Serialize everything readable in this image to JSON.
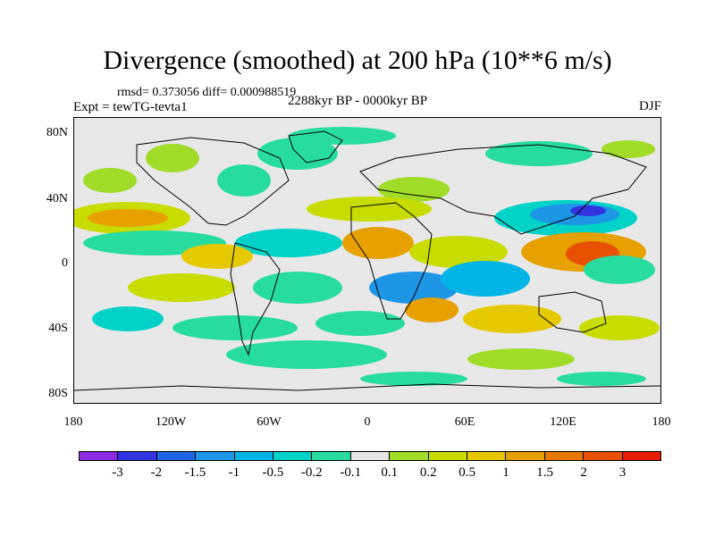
{
  "title": "Divergence (smoothed) at 200 hPa (10**6 m/s)",
  "stats": "rmsd= 0.373056 diff= 0.000988519",
  "experiment": "Expt = tewTG-tevta1",
  "period": "2288kyr BP - 0000kyr BP",
  "season": "DJF",
  "lat_labels": [
    "80N",
    "40N",
    "0",
    "40S",
    "80S"
  ],
  "lon_labels": [
    "180",
    "120W",
    "60W",
    "0",
    "60E",
    "120E",
    "180"
  ],
  "colorbar": {
    "colors": [
      "#8a2be2",
      "#3232e0",
      "#1e64e6",
      "#1e96e6",
      "#00b4e6",
      "#00d2c8",
      "#28dca0",
      "#e6e6e6",
      "#a0dc28",
      "#c8dc00",
      "#e6c800",
      "#e6a000",
      "#e67800",
      "#e65000",
      "#e61e00"
    ],
    "labels": [
      "-3",
      "-2",
      "-1.5",
      "-1",
      "-0.5",
      "-0.2",
      "-0.1",
      "0.1",
      "0.2",
      "0.5",
      "1",
      "1.5",
      "2",
      "3"
    ]
  }
}
